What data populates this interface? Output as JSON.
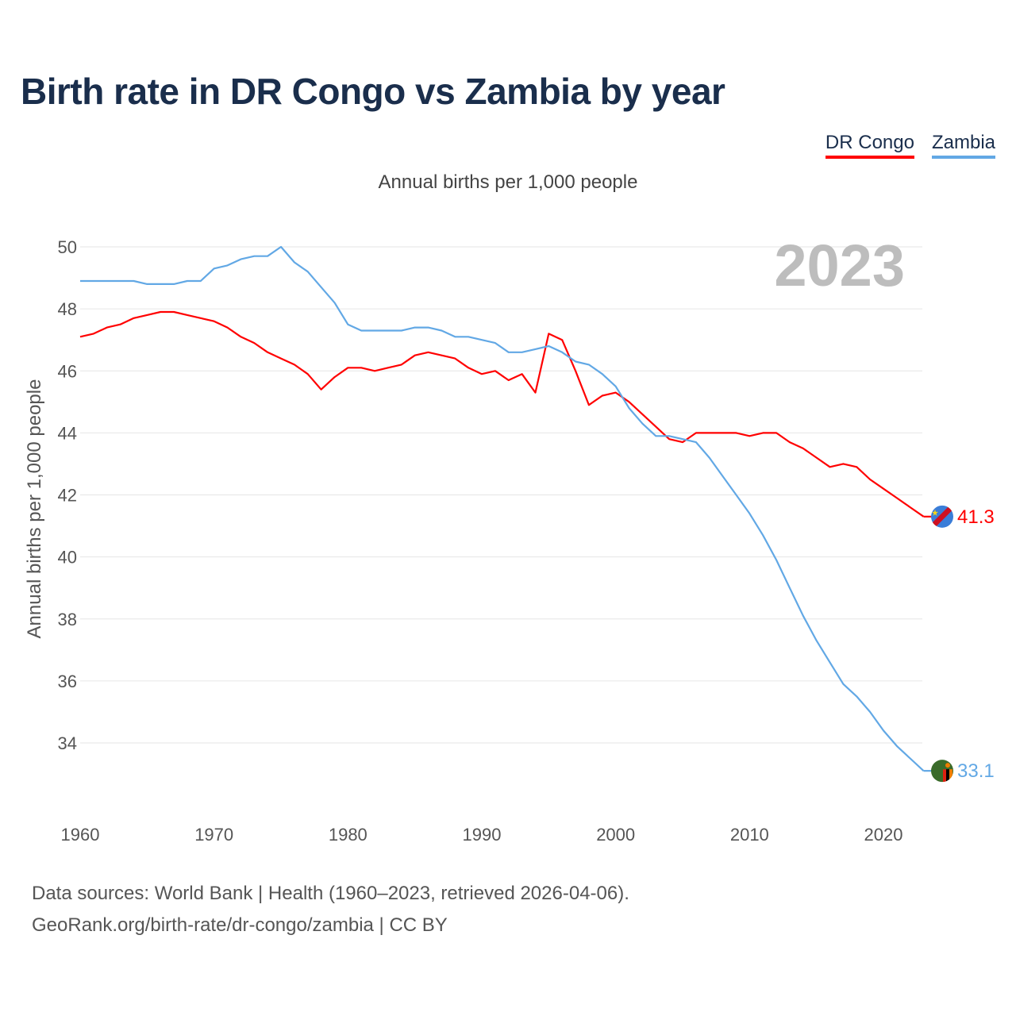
{
  "title": "Birth rate in DR Congo vs Zambia by year",
  "subtitle": "Annual births per 1,000 people",
  "legend": [
    {
      "name": "DR Congo",
      "color": "#ff0000"
    },
    {
      "name": "Zambia",
      "color": "#62a8e5"
    }
  ],
  "footer": {
    "line1": "Data sources: World Bank | Health (1960–2023, retrieved 2026-04-06).",
    "line2": "GeoRank.org/birth-rate/dr-congo/zambia | CC BY"
  },
  "chart_data": {
    "type": "line",
    "title": "Birth rate in DR Congo vs Zambia by year",
    "ylabel": "Annual births per 1,000 people",
    "xlabel": "",
    "year_label": "2023",
    "xlim": [
      1960,
      2023
    ],
    "ylim": [
      32.5,
      50.5
    ],
    "x_ticks": [
      1960,
      1970,
      1980,
      1990,
      2000,
      2010,
      2020
    ],
    "y_ticks": [
      34,
      36,
      38,
      40,
      42,
      44,
      46,
      48,
      50
    ],
    "x": [
      1960,
      1961,
      1962,
      1963,
      1964,
      1965,
      1966,
      1967,
      1968,
      1969,
      1970,
      1971,
      1972,
      1973,
      1974,
      1975,
      1976,
      1977,
      1978,
      1979,
      1980,
      1981,
      1982,
      1983,
      1984,
      1985,
      1986,
      1987,
      1988,
      1989,
      1990,
      1991,
      1992,
      1993,
      1994,
      1995,
      1996,
      1997,
      1998,
      1999,
      2000,
      2001,
      2002,
      2003,
      2004,
      2005,
      2006,
      2007,
      2008,
      2009,
      2010,
      2011,
      2012,
      2013,
      2014,
      2015,
      2016,
      2017,
      2018,
      2019,
      2020,
      2021,
      2022,
      2023
    ],
    "series": [
      {
        "name": "DR Congo",
        "color": "#ff0000",
        "end_label": "41.3",
        "values": [
          47.1,
          47.2,
          47.4,
          47.5,
          47.7,
          47.8,
          47.9,
          47.9,
          47.8,
          47.7,
          47.6,
          47.4,
          47.1,
          46.9,
          46.6,
          46.4,
          46.2,
          45.9,
          45.4,
          45.8,
          46.1,
          46.1,
          46.0,
          46.1,
          46.2,
          46.5,
          46.6,
          46.5,
          46.4,
          46.1,
          45.9,
          46.0,
          45.7,
          45.9,
          45.3,
          47.2,
          47.0,
          46.0,
          44.9,
          45.2,
          45.3,
          45.0,
          44.6,
          44.2,
          43.8,
          43.7,
          44.0,
          44.0,
          44.0,
          44.0,
          43.9,
          44.0,
          44.0,
          43.7,
          43.5,
          43.2,
          42.9,
          43.0,
          42.9,
          42.5,
          42.2,
          41.9,
          41.6,
          41.3
        ]
      },
      {
        "name": "Zambia",
        "color": "#62a8e5",
        "end_label": "33.1",
        "values": [
          48.9,
          48.9,
          48.9,
          48.9,
          48.9,
          48.8,
          48.8,
          48.8,
          48.9,
          48.9,
          49.3,
          49.4,
          49.6,
          49.7,
          49.7,
          50.0,
          49.5,
          49.2,
          48.7,
          48.2,
          47.5,
          47.3,
          47.3,
          47.3,
          47.3,
          47.4,
          47.4,
          47.3,
          47.1,
          47.1,
          47.0,
          46.9,
          46.6,
          46.6,
          46.7,
          46.8,
          46.6,
          46.3,
          46.2,
          45.9,
          45.5,
          44.8,
          44.3,
          43.9,
          43.9,
          43.8,
          43.7,
          43.2,
          42.6,
          42.0,
          41.4,
          40.7,
          39.9,
          39.0,
          38.1,
          37.3,
          36.6,
          35.9,
          35.5,
          35.0,
          34.4,
          33.9,
          33.5,
          33.1
        ]
      }
    ]
  }
}
